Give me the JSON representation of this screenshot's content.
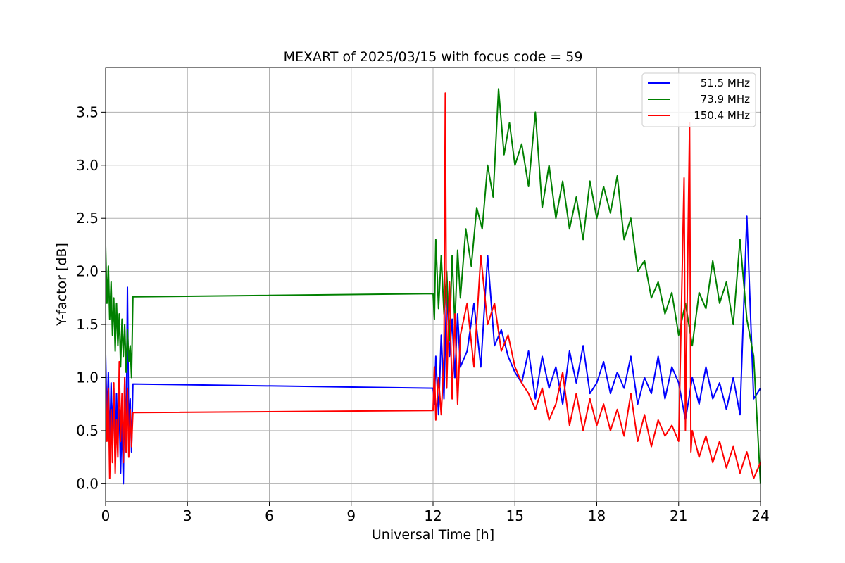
{
  "chart_data": {
    "type": "line",
    "title": "MEXART of 2025/03/15 with focus code = 59",
    "xlabel": "Universal Time [h]",
    "ylabel": "Y-factor [dB]",
    "xlim": [
      0,
      24
    ],
    "ylim": [
      -0.17,
      3.92
    ],
    "xticks": [
      0,
      3,
      6,
      9,
      12,
      15,
      18,
      21,
      24
    ],
    "yticks": [
      0.0,
      0.5,
      1.0,
      1.5,
      2.0,
      2.5,
      3.0,
      3.5
    ],
    "xtick_labels": [
      "0",
      "3",
      "6",
      "9",
      "12",
      "15",
      "18",
      "21",
      "24"
    ],
    "ytick_labels": [
      "0.0",
      "0.5",
      "1.0",
      "1.5",
      "2.0",
      "2.5",
      "3.0",
      "3.5"
    ],
    "grid": true,
    "legend_position": "top-right",
    "series": [
      {
        "name": "51.5 MHz",
        "color": "#0000ff",
        "x": [
          0,
          0.05,
          0.1,
          0.15,
          0.2,
          0.25,
          0.3,
          0.35,
          0.4,
          0.45,
          0.5,
          0.55,
          0.6,
          0.65,
          0.7,
          0.75,
          0.8,
          0.85,
          0.9,
          0.95,
          1.0,
          12.0,
          12.05,
          12.1,
          12.2,
          12.3,
          12.4,
          12.5,
          12.6,
          12.7,
          12.8,
          12.9,
          13.0,
          13.25,
          13.5,
          13.75,
          14.0,
          14.25,
          14.5,
          14.75,
          15.0,
          15.25,
          15.5,
          15.75,
          16.0,
          16.25,
          16.5,
          16.75,
          17.0,
          17.25,
          17.5,
          17.75,
          18.0,
          18.25,
          18.5,
          18.75,
          19.0,
          19.25,
          19.5,
          19.75,
          20.0,
          20.25,
          20.5,
          20.75,
          21.0,
          21.25,
          21.5,
          21.75,
          22.0,
          22.25,
          22.5,
          22.75,
          23.0,
          23.25,
          23.5,
          23.75,
          24.0
        ],
        "y": [
          1.22,
          0.6,
          1.05,
          0.35,
          0.95,
          0.5,
          0.9,
          0.2,
          0.85,
          0.4,
          0.7,
          0.1,
          0.6,
          0.0,
          1.0,
          0.3,
          1.85,
          0.5,
          0.8,
          0.3,
          0.94,
          0.9,
          0.75,
          1.2,
          0.65,
          1.4,
          0.8,
          1.9,
          1.2,
          1.55,
          1.0,
          1.6,
          1.1,
          1.25,
          1.7,
          1.1,
          2.15,
          1.3,
          1.45,
          1.2,
          1.05,
          0.95,
          1.25,
          0.8,
          1.2,
          0.9,
          1.1,
          0.75,
          1.25,
          0.95,
          1.3,
          0.85,
          0.95,
          1.15,
          0.85,
          1.05,
          0.9,
          1.2,
          0.75,
          1.0,
          0.85,
          1.2,
          0.8,
          1.1,
          0.95,
          0.6,
          1.0,
          0.75,
          1.1,
          0.8,
          0.95,
          0.7,
          1.0,
          0.65,
          2.52,
          0.8,
          0.9
        ]
      },
      {
        "name": "73.9 MHz",
        "color": "#008000",
        "x": [
          0,
          0.05,
          0.1,
          0.15,
          0.2,
          0.25,
          0.3,
          0.35,
          0.4,
          0.45,
          0.5,
          0.55,
          0.6,
          0.65,
          0.7,
          0.75,
          0.8,
          0.85,
          0.9,
          0.95,
          1.0,
          12.0,
          12.05,
          12.1,
          12.2,
          12.3,
          12.4,
          12.5,
          12.6,
          12.7,
          12.8,
          12.9,
          13.0,
          13.2,
          13.4,
          13.6,
          13.8,
          14.0,
          14.2,
          14.4,
          14.6,
          14.8,
          15.0,
          15.25,
          15.5,
          15.75,
          16.0,
          16.25,
          16.5,
          16.75,
          17.0,
          17.25,
          17.5,
          17.75,
          18.0,
          18.25,
          18.5,
          18.75,
          19.0,
          19.25,
          19.5,
          19.75,
          20.0,
          20.25,
          20.5,
          20.75,
          21.0,
          21.25,
          21.5,
          21.75,
          22.0,
          22.25,
          22.5,
          22.75,
          23.0,
          23.25,
          23.5,
          23.75,
          24.0
        ],
        "y": [
          2.24,
          1.7,
          2.05,
          1.55,
          1.9,
          1.4,
          1.75,
          1.25,
          1.7,
          1.3,
          1.6,
          1.1,
          1.55,
          1.2,
          1.5,
          1.05,
          1.45,
          1.15,
          1.3,
          1.0,
          1.76,
          1.79,
          1.55,
          2.3,
          1.65,
          2.15,
          1.6,
          2.0,
          1.35,
          2.15,
          1.5,
          2.2,
          1.75,
          2.4,
          2.05,
          2.6,
          2.4,
          3.0,
          2.7,
          3.72,
          3.1,
          3.4,
          3.0,
          3.2,
          2.8,
          3.5,
          2.6,
          3.0,
          2.5,
          2.85,
          2.4,
          2.7,
          2.3,
          2.85,
          2.5,
          2.8,
          2.55,
          2.9,
          2.3,
          2.5,
          2.0,
          2.1,
          1.75,
          1.9,
          1.6,
          1.8,
          1.4,
          1.7,
          1.3,
          1.8,
          1.65,
          2.1,
          1.7,
          1.9,
          1.5,
          2.3,
          1.55,
          1.2,
          0.0
        ]
      },
      {
        "name": "150.4 MHz",
        "color": "#ff0000",
        "x": [
          0,
          0.05,
          0.1,
          0.15,
          0.2,
          0.25,
          0.3,
          0.35,
          0.4,
          0.45,
          0.5,
          0.55,
          0.6,
          0.65,
          0.7,
          0.75,
          0.8,
          0.85,
          0.9,
          0.95,
          1.0,
          12.0,
          12.05,
          12.1,
          12.2,
          12.3,
          12.4,
          12.45,
          12.5,
          12.6,
          12.7,
          12.8,
          12.9,
          13.0,
          13.25,
          13.5,
          13.75,
          14.0,
          14.25,
          14.5,
          14.75,
          15.0,
          15.25,
          15.5,
          15.75,
          16.0,
          16.25,
          16.5,
          16.75,
          17.0,
          17.25,
          17.5,
          17.75,
          18.0,
          18.25,
          18.5,
          18.75,
          19.0,
          19.25,
          19.5,
          19.75,
          20.0,
          20.25,
          20.5,
          20.75,
          21.0,
          21.2,
          21.25,
          21.4,
          21.45,
          21.5,
          21.75,
          22.0,
          22.25,
          22.5,
          22.75,
          23.0,
          23.25,
          23.5,
          23.75,
          24.0
        ],
        "y": [
          0.98,
          0.4,
          0.9,
          0.05,
          0.7,
          0.2,
          0.95,
          0.1,
          0.6,
          0.25,
          1.15,
          0.4,
          0.85,
          0.2,
          1.0,
          0.3,
          0.9,
          0.25,
          0.7,
          0.35,
          0.67,
          0.69,
          1.1,
          0.6,
          1.0,
          0.65,
          1.2,
          3.68,
          0.9,
          1.9,
          0.8,
          1.6,
          0.75,
          1.4,
          1.7,
          1.1,
          2.15,
          1.5,
          1.7,
          1.25,
          1.4,
          1.1,
          0.95,
          0.85,
          0.7,
          0.9,
          0.6,
          0.75,
          1.05,
          0.55,
          0.85,
          0.5,
          0.8,
          0.55,
          0.75,
          0.5,
          0.7,
          0.45,
          0.85,
          0.4,
          0.65,
          0.35,
          0.6,
          0.45,
          0.55,
          0.4,
          2.88,
          0.5,
          3.4,
          0.3,
          0.5,
          0.25,
          0.45,
          0.2,
          0.4,
          0.15,
          0.35,
          0.1,
          0.3,
          0.05,
          0.2
        ]
      }
    ]
  }
}
